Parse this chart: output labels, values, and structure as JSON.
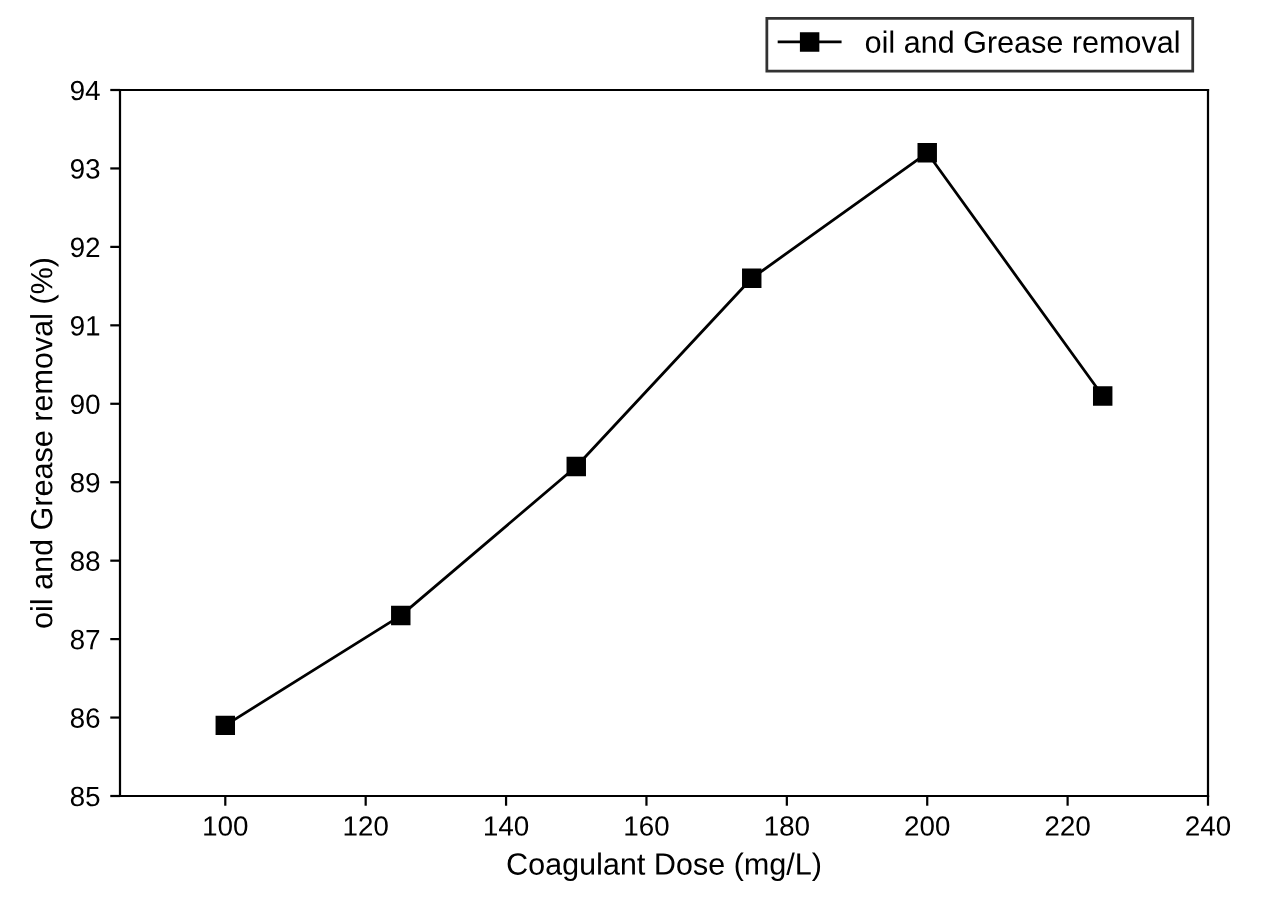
{
  "chart_data": {
    "type": "line",
    "xlabel": "Coagulant Dose (mg/L)",
    "ylabel": "oil and Grease removal (%)",
    "x": [
      100,
      125,
      150,
      175,
      200,
      225
    ],
    "series": [
      {
        "name": "oil and Grease removal",
        "color": "#000000",
        "values": [
          85.9,
          87.3,
          89.2,
          91.6,
          93.2,
          90.1
        ]
      }
    ],
    "xlim": [
      85,
      240
    ],
    "xticks": [
      100,
      120,
      140,
      160,
      180,
      200,
      220,
      240
    ],
    "ylim": [
      85,
      94
    ],
    "yticks": [
      85,
      86,
      87,
      88,
      89,
      90,
      91,
      92,
      93,
      94
    ],
    "marker": "square",
    "line_style": "solid",
    "legend": "top right",
    "grid": false
  }
}
